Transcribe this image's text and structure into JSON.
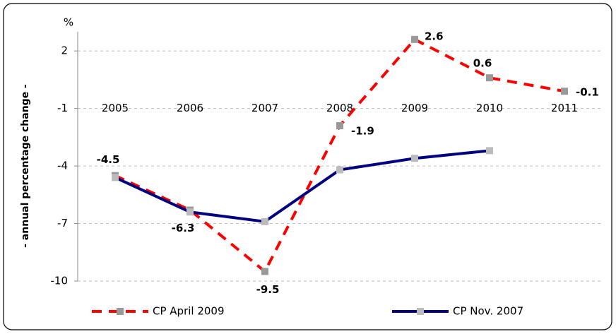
{
  "chart_data": {
    "type": "line",
    "y_label": "- annual percentage change -",
    "y_unit": "%",
    "categories": [
      "2005",
      "2006",
      "2007",
      "2008",
      "2009",
      "2010",
      "2011"
    ],
    "series": [
      {
        "name": "CP April 2009",
        "color": "#ff0000",
        "dashed": true,
        "marker_color": "#999999",
        "data_labels": true,
        "values": [
          -4.5,
          -6.3,
          -9.5,
          -1.9,
          2.6,
          0.6,
          -0.1
        ]
      },
      {
        "name": "CP Nov. 2007",
        "color": "#000080",
        "dashed": false,
        "marker_color": "#bbbbbb",
        "data_labels": false,
        "values": [
          -4.6,
          -6.4,
          -6.9,
          -4.2,
          -3.6,
          -3.2,
          null
        ]
      }
    ],
    "ylim": [
      -10,
      3
    ],
    "yticks": [
      2,
      -1,
      -4,
      -7,
      -10
    ],
    "grid": true
  }
}
